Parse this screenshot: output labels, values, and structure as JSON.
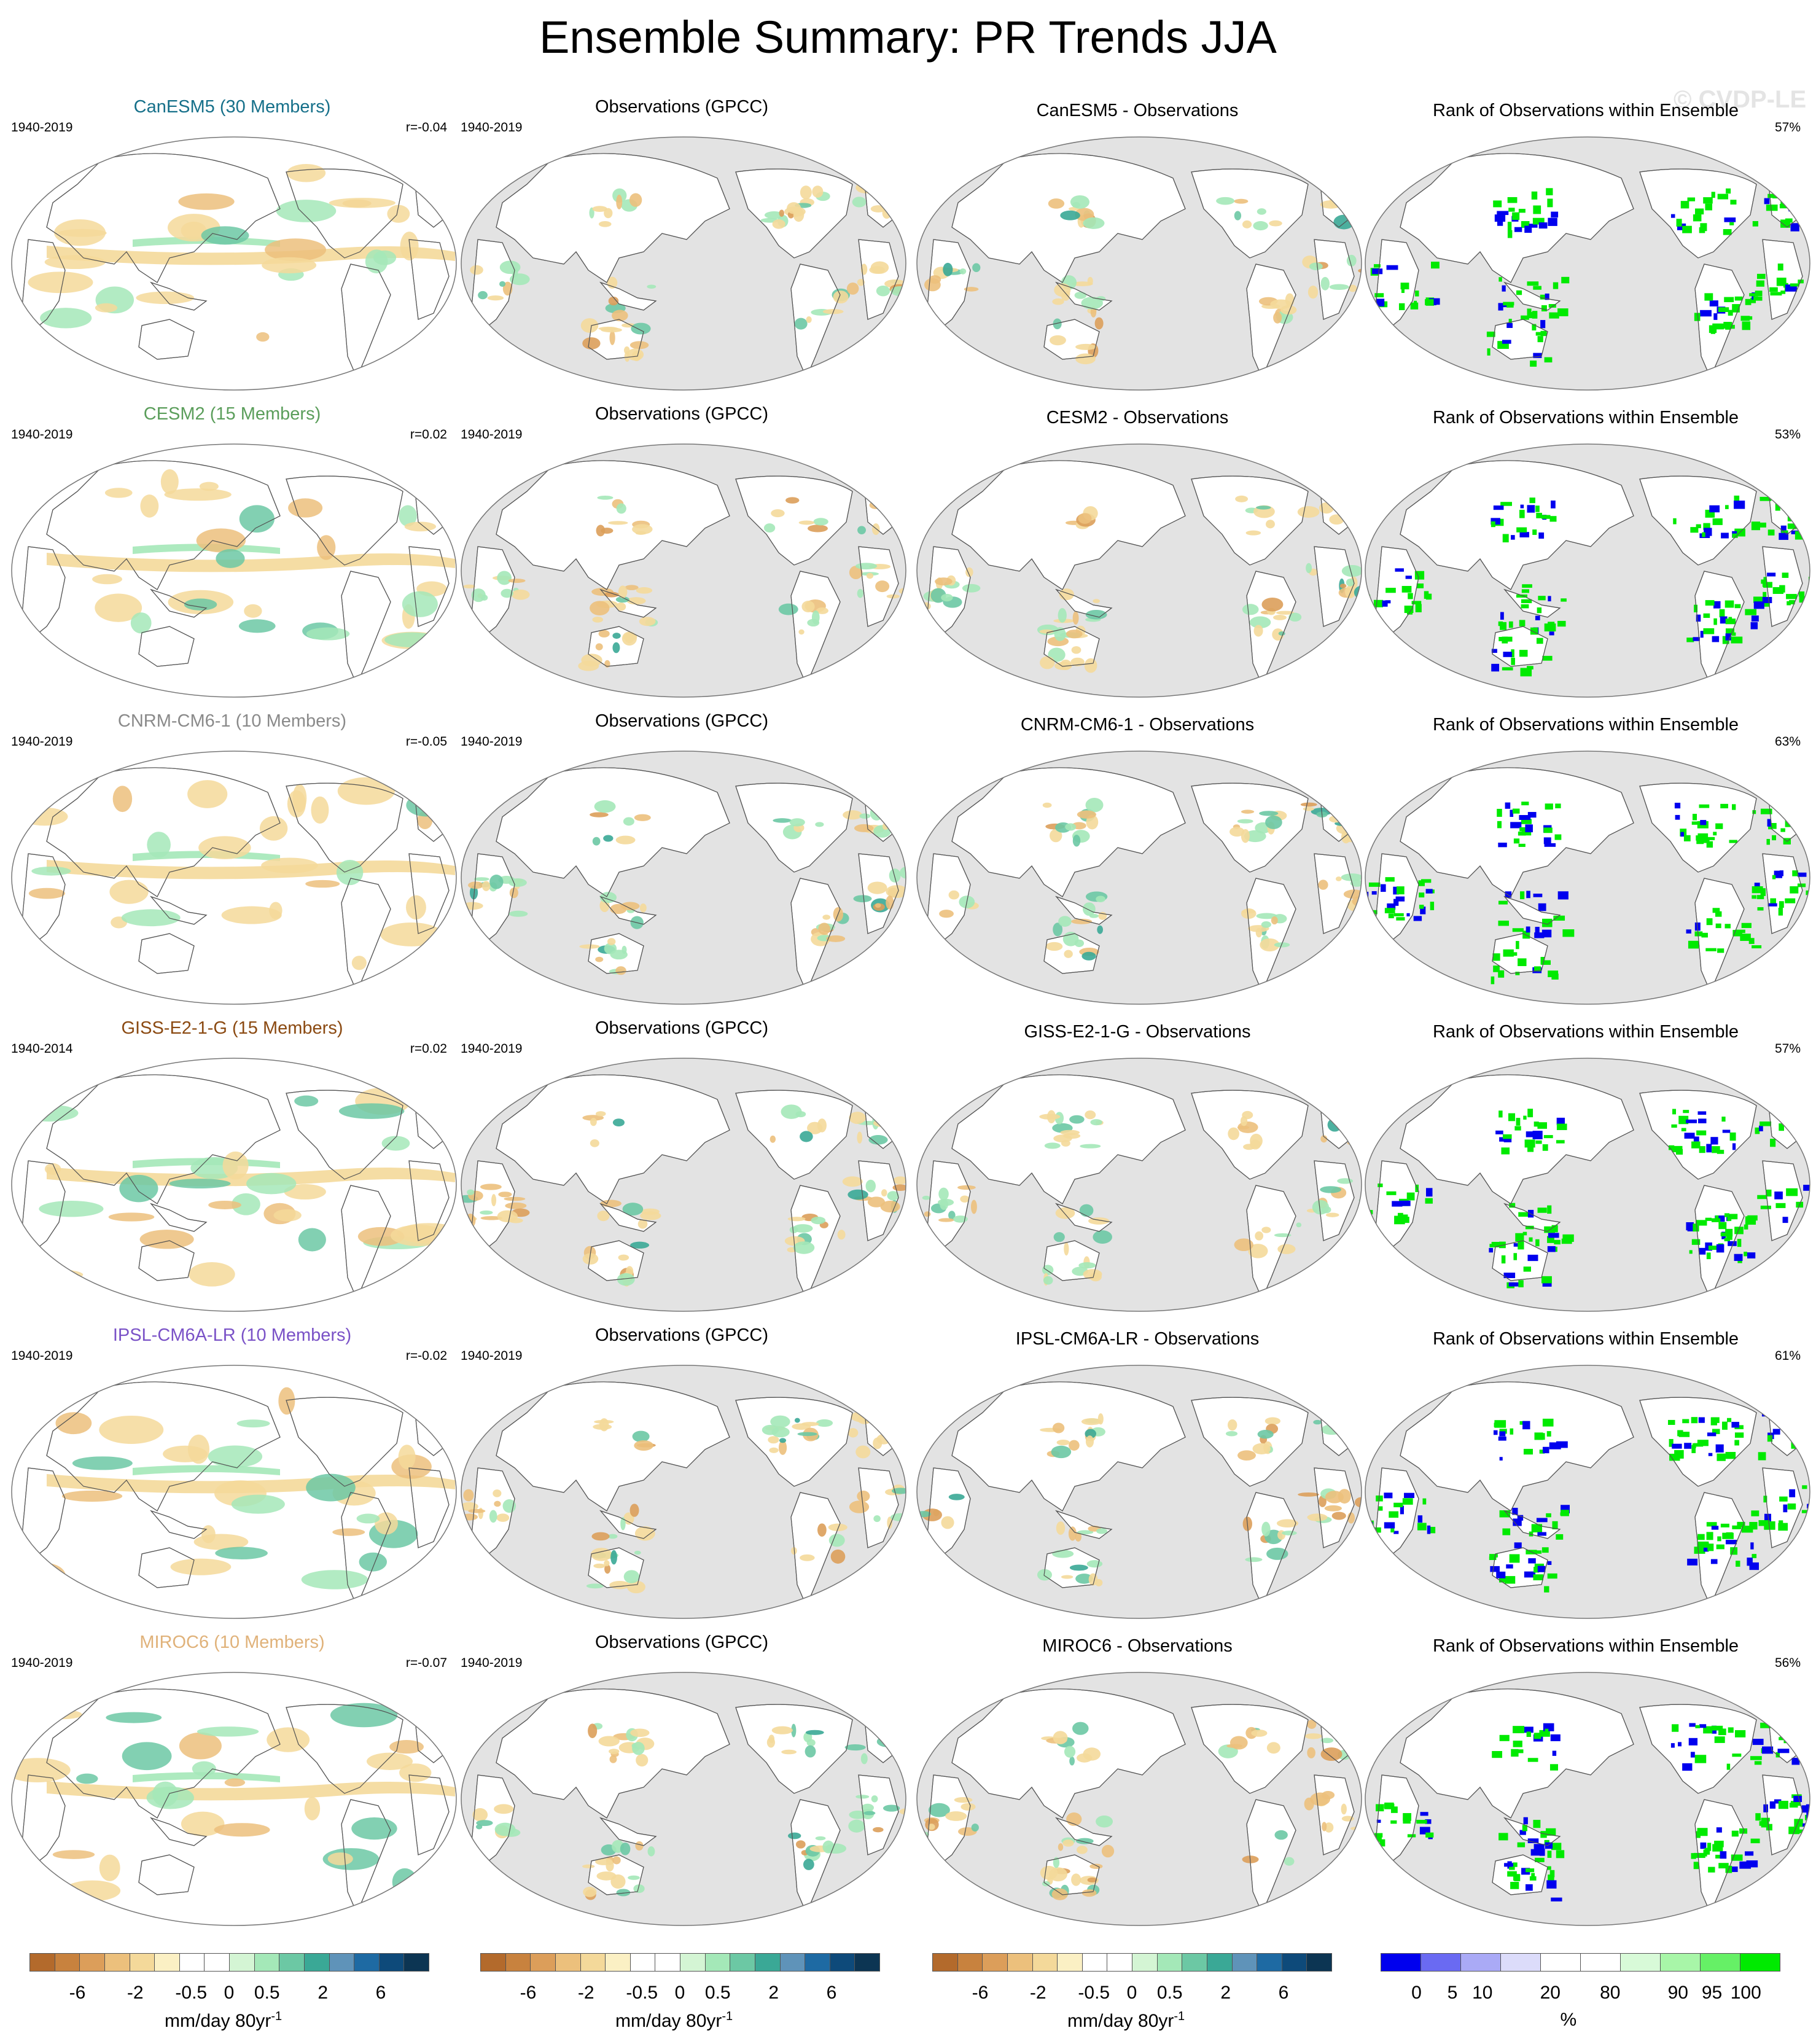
{
  "title": "Ensemble Summary: PR Trends JJA",
  "watermark": "© CVDP-LE",
  "rows": [
    {
      "model_title": "CanESM5 (30 Members)",
      "model_color": "#16708a",
      "model_period": "1940-2019",
      "pattern_corr": "r=-0.04",
      "obs_title": "Observations (GPCC)",
      "obs_period": "1940-2019",
      "diff_title": "CanESM5 - Observations",
      "rank_title": "Rank of Observations within Ensemble",
      "rank_pct": "57%"
    },
    {
      "model_title": "CESM2 (15 Members)",
      "model_color": "#5b9e5b",
      "model_period": "1940-2019",
      "pattern_corr": "r=0.02",
      "obs_title": "Observations (GPCC)",
      "obs_period": "1940-2019",
      "diff_title": "CESM2 - Observations",
      "rank_title": "Rank of Observations within Ensemble",
      "rank_pct": "53%"
    },
    {
      "model_title": "CNRM-CM6-1 (10 Members)",
      "model_color": "#8a8a8a",
      "model_period": "1940-2019",
      "pattern_corr": "r=-0.05",
      "obs_title": "Observations (GPCC)",
      "obs_period": "1940-2019",
      "diff_title": "CNRM-CM6-1 - Observations",
      "rank_title": "Rank of Observations within Ensemble",
      "rank_pct": "63%"
    },
    {
      "model_title": "GISS-E2-1-G (15 Members)",
      "model_color": "#8b4a12",
      "model_period": "1940-2014",
      "pattern_corr": "r=0.02",
      "obs_title": "Observations (GPCC)",
      "obs_period": "1940-2019",
      "diff_title": "GISS-E2-1-G - Observations",
      "rank_title": "Rank of Observations within Ensemble",
      "rank_pct": "57%"
    },
    {
      "model_title": "IPSL-CM6A-LR (10 Members)",
      "model_color": "#7a52c7",
      "model_period": "1940-2019",
      "pattern_corr": "r=-0.02",
      "obs_title": "Observations (GPCC)",
      "obs_period": "1940-2019",
      "diff_title": "IPSL-CM6A-LR - Observations",
      "rank_title": "Rank of Observations within Ensemble",
      "rank_pct": "61%"
    },
    {
      "model_title": "MIROC6 (10 Members)",
      "model_color": "#e0b27a",
      "model_period": "1940-2019",
      "pattern_corr": "r=-0.07",
      "obs_title": "Observations (GPCC)",
      "obs_period": "1940-2019",
      "diff_title": "MIROC6 - Observations",
      "rank_title": "Rank of Observations within Ensemble",
      "rank_pct": "56%"
    }
  ],
  "colorbars": [
    {
      "name": "trend",
      "ticks": [
        "-6",
        "-2",
        "-0.5",
        "0",
        "0.5",
        "2",
        "6"
      ],
      "title": "mm/day 80yr",
      "title_sup": "-1",
      "colors": [
        "#b36a2c",
        "#c8823e",
        "#dc9e5a",
        "#ecc07c",
        "#f4d99a",
        "#fbf0c4",
        "#ffffff",
        "#ffffff",
        "#d4f5d4",
        "#a4e8b8",
        "#6cc8a4",
        "#3aa896",
        "#5f93b9",
        "#1e6aa3",
        "#0e4a7a",
        "#0c3553"
      ]
    },
    {
      "name": "rank",
      "ticks": [
        "0",
        "5",
        "10",
        "20",
        "80",
        "90",
        "95",
        "100"
      ],
      "title": "%",
      "colors": [
        "#0000ee",
        "#6a6af2",
        "#aaaaf6",
        "#dcdcfa",
        "#ffffff",
        "#ffffff",
        "#d8fad8",
        "#a8f6a8",
        "#66f066",
        "#00ea00"
      ]
    }
  ],
  "map_colors": {
    "land_obs": "#e3e3e3",
    "dry_1": "#f4d99a",
    "dry_2": "#ecc07c",
    "dry_3": "#dc9e5a",
    "wet_1": "#a4e8b8",
    "wet_2": "#6cc8a4",
    "wet_3": "#3aa896",
    "rank_low": "#0000ee",
    "rank_high": "#00ea00"
  }
}
